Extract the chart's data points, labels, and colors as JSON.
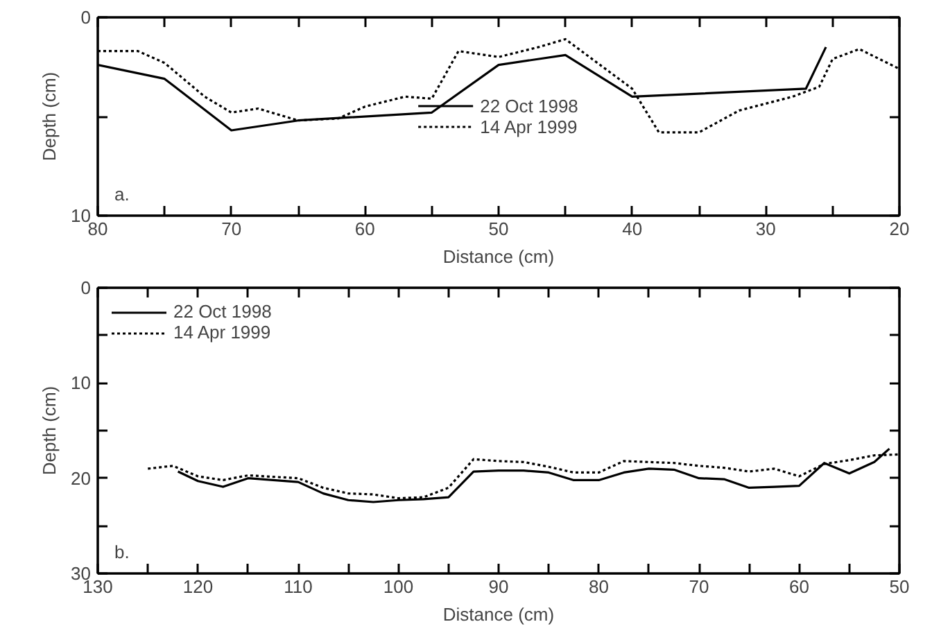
{
  "chart_data": [
    {
      "type": "line",
      "xlabel": "Distance (cm)",
      "ylabel": "Depth (cm)",
      "annotations": [
        "a."
      ],
      "xlim": [
        80,
        20
      ],
      "ylim": [
        10,
        0
      ],
      "xticks": [
        80,
        {
          "value": 75,
          "label": null
        },
        70,
        {
          "value": 65,
          "label": null
        },
        60,
        {
          "value": 55,
          "label": null
        },
        50,
        {
          "value": 45,
          "label": null
        },
        40,
        {
          "value": 35,
          "label": null
        },
        30,
        {
          "value": 25,
          "label": null
        },
        20
      ],
      "yticks": [
        0,
        {
          "value": 5,
          "label": null
        },
        10
      ],
      "grid": false,
      "legend": "center",
      "marker": "none",
      "series": [
        {
          "name": "22 Oct 1998",
          "color": "#000000",
          "line_style": "solid",
          "x": [
            80,
            75,
            70,
            65,
            55,
            50,
            45,
            40,
            27,
            25.5
          ],
          "values": [
            2.4,
            3.1,
            5.7,
            5.2,
            4.8,
            2.4,
            1.9,
            4.0,
            3.6,
            1.5
          ]
        },
        {
          "name": "14 Apr 1999",
          "color": "#000000",
          "line_style": "dotted",
          "x": [
            80,
            77,
            75,
            72,
            70,
            68,
            65,
            62,
            60,
            57,
            55,
            53,
            50,
            47,
            45,
            40,
            38,
            35,
            32,
            28,
            26,
            25,
            23,
            20
          ],
          "values": [
            1.7,
            1.7,
            2.3,
            4.0,
            4.8,
            4.6,
            5.2,
            5.1,
            4.5,
            4.0,
            4.1,
            1.7,
            2.0,
            1.5,
            1.1,
            3.6,
            5.8,
            5.8,
            4.7,
            4.0,
            3.5,
            2.1,
            1.6,
            2.6
          ]
        }
      ]
    },
    {
      "type": "line",
      "xlabel": "Distance (cm)",
      "ylabel": "Depth (cm)",
      "annotations": [
        "b."
      ],
      "xlim": [
        130,
        50
      ],
      "ylim": [
        30,
        0
      ],
      "xticks": [
        130,
        {
          "value": 125,
          "label": null
        },
        120,
        {
          "value": 115,
          "label": null
        },
        110,
        {
          "value": 105,
          "label": null
        },
        100,
        {
          "value": 95,
          "label": null
        },
        90,
        {
          "value": 85,
          "label": null
        },
        80,
        {
          "value": 75,
          "label": null
        },
        70,
        {
          "value": 65,
          "label": null
        },
        60,
        {
          "value": 55,
          "label": null
        },
        50
      ],
      "yticks": [
        0,
        {
          "value": 5,
          "label": null
        },
        10,
        {
          "value": 15,
          "label": null
        },
        20,
        {
          "value": 25,
          "label": null
        },
        30
      ],
      "grid": false,
      "legend": "top left",
      "marker": "none",
      "series": [
        {
          "name": "22 Oct 1998",
          "color": "#000000",
          "line_style": "solid",
          "x": [
            122,
            120,
            117.5,
            115,
            110,
            107.5,
            105,
            102.5,
            100,
            97.5,
            95,
            92.5,
            90,
            87.5,
            85,
            82.5,
            80,
            77.5,
            75,
            72.5,
            70,
            67.5,
            65,
            62.5,
            60,
            57.5,
            55,
            52.5,
            51
          ],
          "values": [
            19.3,
            20.3,
            20.9,
            20.0,
            20.4,
            21.6,
            22.3,
            22.5,
            22.3,
            22.2,
            22.0,
            19.3,
            19.2,
            19.2,
            19.4,
            20.2,
            20.2,
            19.4,
            19.0,
            19.1,
            20.0,
            20.1,
            21.0,
            20.9,
            20.8,
            18.4,
            19.5,
            18.3,
            16.9
          ]
        },
        {
          "name": "14 Apr 1999",
          "color": "#000000",
          "line_style": "dotted",
          "x": [
            125,
            122.5,
            120,
            117.5,
            115,
            110,
            107.5,
            105,
            102.5,
            100,
            97.5,
            95,
            92.5,
            90,
            87.5,
            85,
            82.5,
            80,
            77.5,
            75,
            72.5,
            70,
            67.5,
            65,
            62.5,
            60,
            57.5,
            55,
            52.5,
            50
          ],
          "values": [
            19.0,
            18.7,
            19.8,
            20.2,
            19.7,
            20.0,
            21.0,
            21.6,
            21.7,
            22.1,
            22.0,
            21.0,
            18.0,
            18.2,
            18.3,
            18.8,
            19.4,
            19.4,
            18.2,
            18.3,
            18.4,
            18.7,
            18.9,
            19.3,
            19.0,
            19.8,
            18.5,
            18.1,
            17.6,
            17.5
          ]
        }
      ]
    }
  ]
}
